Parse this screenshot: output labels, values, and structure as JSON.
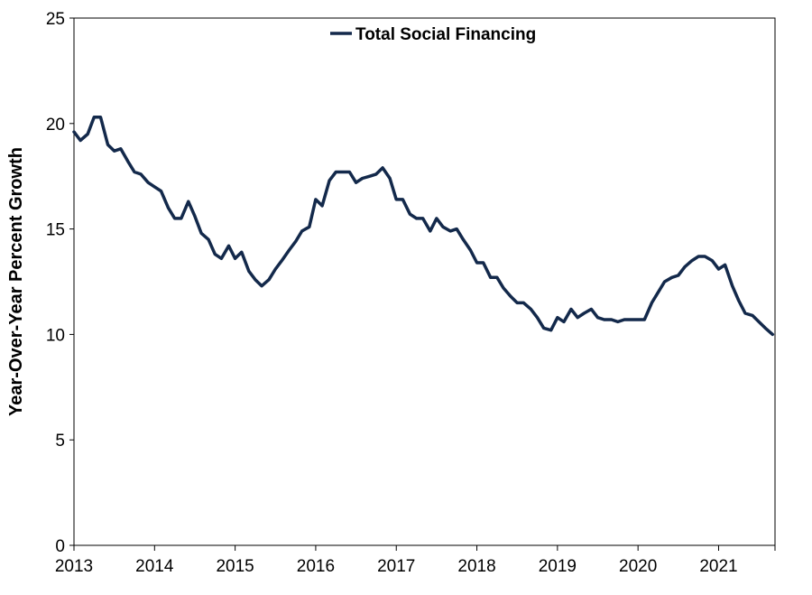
{
  "chart_data": {
    "type": "line",
    "ylabel": "Year-Over-Year Percent Growth",
    "ylim": [
      0,
      25
    ],
    "yticks": [
      0,
      5,
      10,
      15,
      20,
      25
    ],
    "xlim": [
      2013,
      2021.7
    ],
    "xticks": [
      "2013",
      "2014",
      "2015",
      "2016",
      "2017",
      "2018",
      "2019",
      "2020",
      "2021"
    ],
    "grid": false,
    "legend_position": "top-center",
    "series": [
      {
        "name": "Total Social Financing",
        "color": "#13294b",
        "x": [
          2013.0,
          2013.08,
          2013.17,
          2013.25,
          2013.33,
          2013.42,
          2013.5,
          2013.58,
          2013.67,
          2013.75,
          2013.83,
          2013.92,
          2014.0,
          2014.08,
          2014.17,
          2014.25,
          2014.33,
          2014.42,
          2014.5,
          2014.58,
          2014.67,
          2014.75,
          2014.83,
          2014.92,
          2015.0,
          2015.08,
          2015.17,
          2015.25,
          2015.33,
          2015.42,
          2015.5,
          2015.58,
          2015.67,
          2015.75,
          2015.83,
          2015.92,
          2016.0,
          2016.08,
          2016.17,
          2016.25,
          2016.33,
          2016.42,
          2016.5,
          2016.58,
          2016.67,
          2016.75,
          2016.83,
          2016.92,
          2017.0,
          2017.08,
          2017.17,
          2017.25,
          2017.33,
          2017.42,
          2017.5,
          2017.58,
          2017.67,
          2017.75,
          2017.83,
          2017.92,
          2018.0,
          2018.08,
          2018.17,
          2018.25,
          2018.33,
          2018.42,
          2018.5,
          2018.58,
          2018.67,
          2018.75,
          2018.83,
          2018.92,
          2019.0,
          2019.08,
          2019.17,
          2019.25,
          2019.33,
          2019.42,
          2019.5,
          2019.58,
          2019.67,
          2019.75,
          2019.83,
          2019.92,
          2020.0,
          2020.08,
          2020.17,
          2020.25,
          2020.33,
          2020.42,
          2020.5,
          2020.58,
          2020.67,
          2020.75,
          2020.83,
          2020.92,
          2021.0,
          2021.08,
          2021.17,
          2021.25,
          2021.33,
          2021.42,
          2021.5,
          2021.58,
          2021.67
        ],
        "values": [
          19.6,
          19.2,
          19.5,
          20.3,
          20.3,
          19.0,
          18.7,
          18.8,
          18.2,
          17.7,
          17.6,
          17.2,
          17.0,
          16.8,
          16.0,
          15.5,
          15.5,
          16.3,
          15.6,
          14.8,
          14.5,
          13.8,
          13.6,
          14.2,
          13.6,
          13.9,
          13.0,
          12.6,
          12.3,
          12.6,
          13.1,
          13.5,
          14.0,
          14.4,
          14.9,
          15.1,
          16.4,
          16.1,
          17.3,
          17.7,
          17.7,
          17.7,
          17.2,
          17.4,
          17.5,
          17.6,
          17.9,
          17.4,
          16.4,
          16.4,
          15.7,
          15.5,
          15.5,
          14.9,
          15.5,
          15.1,
          14.9,
          15.0,
          14.5,
          14.0,
          13.4,
          13.4,
          12.7,
          12.7,
          12.2,
          11.8,
          11.5,
          11.5,
          11.2,
          10.8,
          10.3,
          10.2,
          10.8,
          10.6,
          11.2,
          10.8,
          11.0,
          11.2,
          10.8,
          10.7,
          10.7,
          10.6,
          10.7,
          10.7,
          10.7,
          10.7,
          11.5,
          12.0,
          12.5,
          12.7,
          12.8,
          13.2,
          13.5,
          13.7,
          13.7,
          13.5,
          13.1,
          13.3,
          12.3,
          11.6,
          11.0,
          10.9,
          10.6,
          10.3,
          10.0
        ]
      }
    ]
  }
}
